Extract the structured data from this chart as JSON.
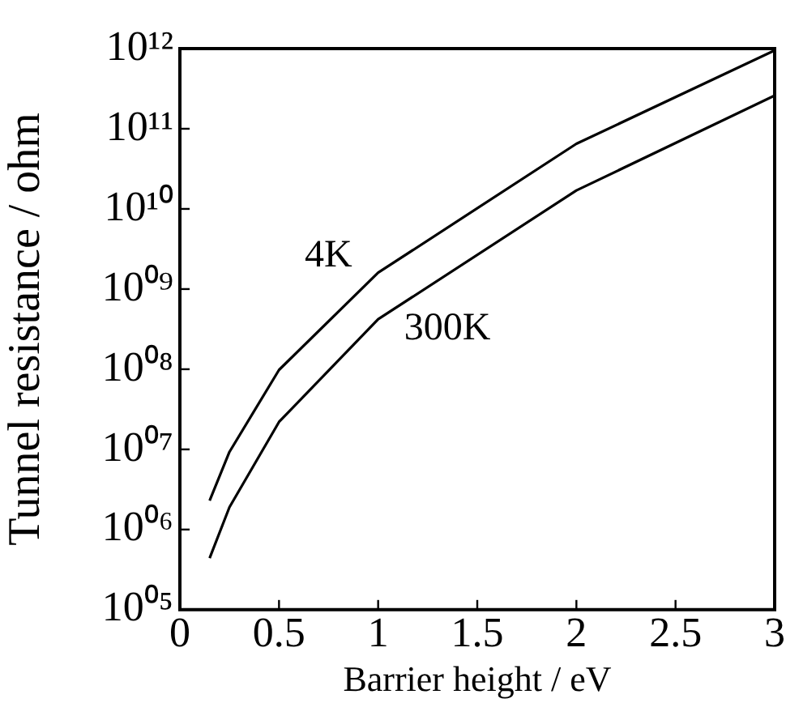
{
  "chart_data": {
    "type": "line",
    "xlabel": "Barrier height / eV",
    "ylabel": "Tunnel resistance / ohm",
    "series": [
      {
        "name": "4K",
        "color": "#000000",
        "x": [
          0.15,
          0.25,
          0.5,
          1,
          2,
          3
        ],
        "values": [
          2300000.0,
          9300000.0,
          98000000.0,
          1600000000.0,
          65000000000.0,
          950000000000.0
        ]
      },
      {
        "name": "300K",
        "color": "#000000",
        "x": [
          0.15,
          0.25,
          0.5,
          1,
          2,
          3
        ],
        "values": [
          440000.0,
          1900000.0,
          22000000.0,
          420000000.0,
          17000000000.0,
          260000000000.0
        ]
      }
    ],
    "xlim": [
      0,
      3
    ],
    "xticks": [
      0,
      0.5,
      1,
      1.5,
      2,
      2.5,
      3
    ],
    "ylim": [
      100000.0,
      1000000000000.0
    ],
    "yticks": [
      {
        "value": 100000.0,
        "label": "10⁰⁵"
      },
      {
        "value": 1000000.0,
        "label": "10⁰⁶"
      },
      {
        "value": 10000000.0,
        "label": "10⁰⁷"
      },
      {
        "value": 100000000.0,
        "label": "10⁰⁸"
      },
      {
        "value": 1000000000.0,
        "label": "10⁰⁹"
      },
      {
        "value": 10000000000.0,
        "label": "10¹⁰"
      },
      {
        "value": 100000000000.0,
        "label": "10¹¹"
      },
      {
        "value": 1000000000000.0,
        "label": "10¹²"
      }
    ],
    "log": true,
    "grid": false,
    "legend": false,
    "marker": "none",
    "line_style": "solid"
  }
}
